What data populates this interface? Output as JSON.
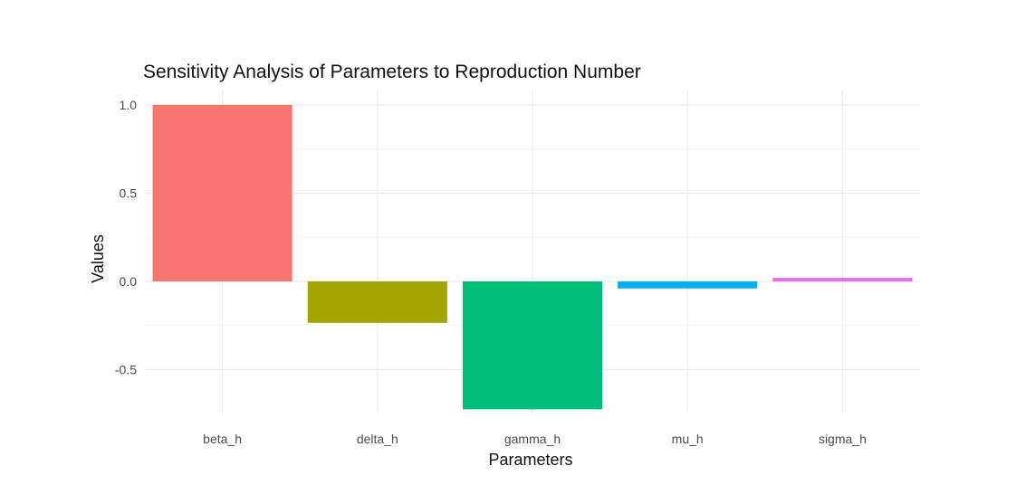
{
  "chart_data": {
    "type": "bar",
    "title": "Sensitivity Analysis of Parameters to Reproduction Number",
    "xlabel": "Parameters",
    "ylabel": "Values",
    "categories": [
      "beta_h",
      "delta_h",
      "gamma_h",
      "mu_h",
      "sigma_h"
    ],
    "values": [
      1.0,
      -0.235,
      -0.725,
      -0.04,
      0.02
    ],
    "colors": [
      "#F8766D",
      "#A3A500",
      "#00BF7D",
      "#00B0F6",
      "#E76BF3"
    ],
    "ylim": [
      -0.75,
      1.0
    ],
    "yticks": [
      -0.5,
      0.0,
      0.5,
      1.0
    ],
    "ytick_labels": [
      "-0.5",
      "0.0",
      "0.5",
      "1.0"
    ],
    "grid": true,
    "legend": "none",
    "theme": "minimal"
  }
}
